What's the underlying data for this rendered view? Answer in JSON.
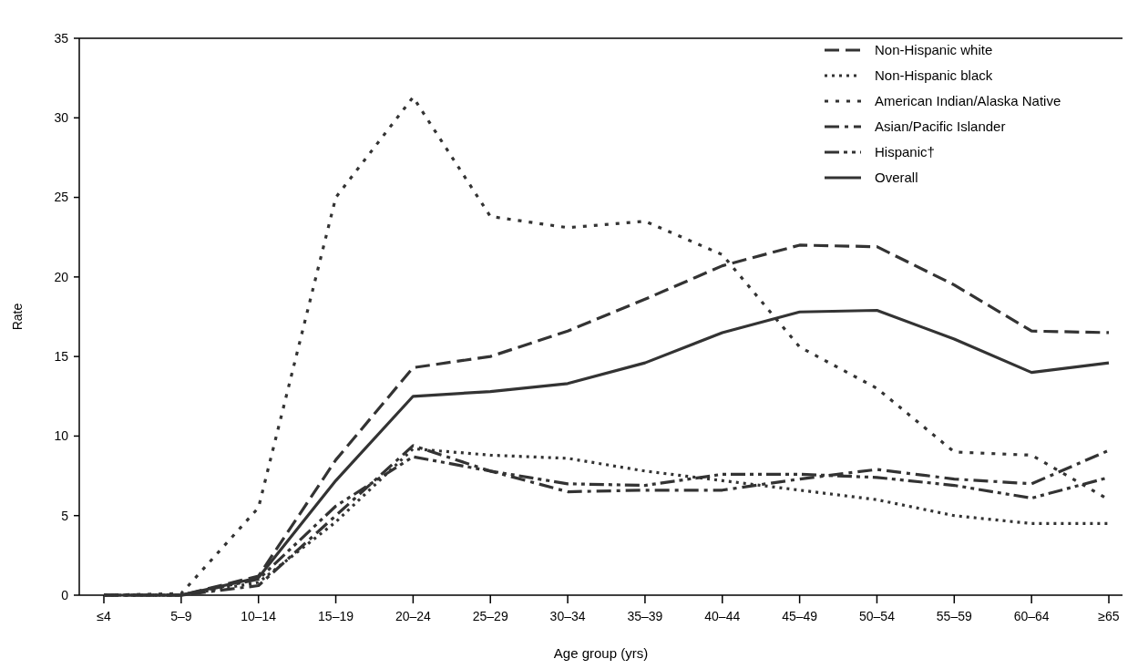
{
  "chart_data": {
    "type": "line",
    "xlabel": "Age group (yrs)",
    "ylabel": "Rate",
    "categories": [
      "≤4",
      "5–9",
      "10–14",
      "15–19",
      "20–24",
      "25–29",
      "30–34",
      "35–39",
      "40–44",
      "45–49",
      "50–54",
      "55–59",
      "60–64",
      "≥65"
    ],
    "ylim": [
      0,
      35
    ],
    "yticks": [
      0,
      5,
      10,
      15,
      20,
      25,
      30,
      35
    ],
    "grid": false,
    "legend": "top right",
    "marker": "none",
    "series": [
      {
        "name": "Non-Hispanic white",
        "color": "#333333",
        "line_style": "dashed",
        "values": [
          0,
          0,
          1.2,
          8.5,
          14.3,
          15.0,
          16.6,
          18.6,
          20.7,
          22.0,
          21.9,
          19.5,
          16.6,
          16.5
        ]
      },
      {
        "name": "Non-Hispanic black",
        "color": "#333333",
        "line_style": "dotted",
        "values": [
          0,
          0,
          0.8,
          4.6,
          9.2,
          8.8,
          8.6,
          7.8,
          7.2,
          6.6,
          6.0,
          5.0,
          4.5,
          4.5
        ]
      },
      {
        "name": "American Indian/Alaska Native",
        "color": "#333333",
        "line_style": "dotted-wide",
        "values": [
          0,
          0.1,
          5.5,
          25.0,
          31.3,
          23.8,
          23.1,
          23.5,
          21.4,
          15.6,
          13.0,
          9.0,
          8.8,
          6.0
        ]
      },
      {
        "name": "Asian/Pacific Islander",
        "color": "#333333",
        "line_style": "dashdot",
        "values": [
          0,
          0,
          0.6,
          5.0,
          9.4,
          7.8,
          6.5,
          6.6,
          6.6,
          7.3,
          7.9,
          7.3,
          7.0,
          9.1
        ]
      },
      {
        "name": "Hispanic†",
        "color": "#333333",
        "line_style": "dashdotdot",
        "values": [
          0,
          0,
          1.0,
          5.6,
          8.7,
          7.8,
          7.0,
          6.9,
          7.6,
          7.6,
          7.4,
          6.9,
          6.1,
          7.4
        ]
      },
      {
        "name": "Overall",
        "color": "#333333",
        "line_style": "solid",
        "values": [
          0,
          0,
          1.1,
          7.2,
          12.5,
          12.8,
          13.3,
          14.6,
          16.5,
          17.8,
          17.9,
          16.1,
          14.0,
          14.6
        ]
      }
    ]
  }
}
